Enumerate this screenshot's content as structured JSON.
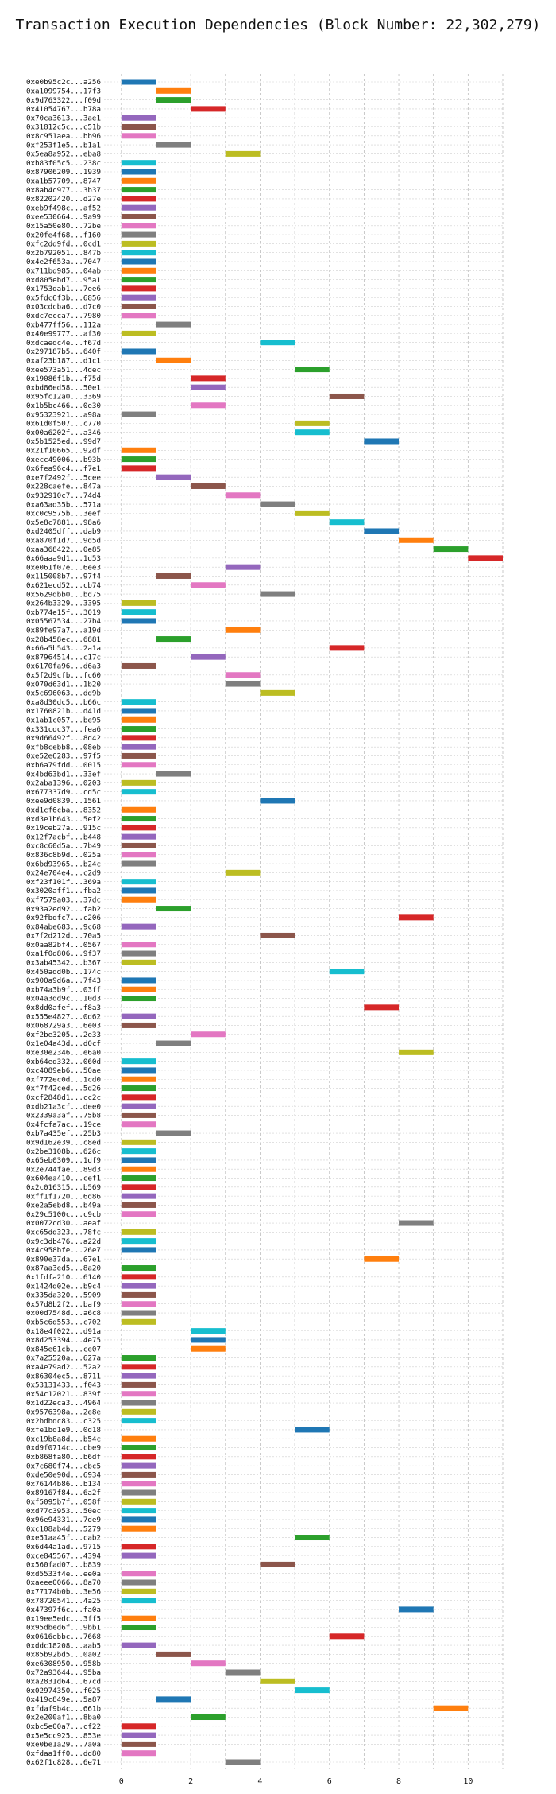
{
  "chart_data": {
    "type": "bar",
    "orientation": "horizontal-gantt",
    "title": "Transaction Execution Dependencies (Block Number: 22,302,279)",
    "xlabel": "",
    "ylabel": "",
    "xlim": [
      -0.5,
      11.0
    ],
    "xticks": [
      0,
      2,
      4,
      6,
      8,
      10
    ],
    "grid": true,
    "bar_width": 1.0,
    "colors": [
      "#1f77b4",
      "#ff7f0e",
      "#2ca02c",
      "#d62728",
      "#9467bd",
      "#8c564b",
      "#e377c2",
      "#7f7f7f",
      "#bcbd22",
      "#17becf"
    ],
    "transactions": [
      [
        "0xe0b95c2c...a256",
        0,
        0
      ],
      [
        "0xa1099754...17f3",
        1,
        1
      ],
      [
        "0x9d763322...f09d",
        1,
        2
      ],
      [
        "0x41054767...b78a",
        2,
        3
      ],
      [
        "0x70ca3613...3ae1",
        0,
        4
      ],
      [
        "0x31812c5c...c51b",
        0,
        5
      ],
      [
        "0x8c951aea...bb96",
        0,
        6
      ],
      [
        "0xf253f1e5...b1a1",
        1,
        7
      ],
      [
        "0x5ea8a952...eba8",
        3,
        8
      ],
      [
        "0xb83f05c5...238c",
        0,
        9
      ],
      [
        "0x87906209...1939",
        0,
        0
      ],
      [
        "0xa1b57709...8747",
        0,
        1
      ],
      [
        "0x8ab4c977...3b37",
        0,
        2
      ],
      [
        "0x82202420...d27e",
        0,
        3
      ],
      [
        "0xeb9f498c...af52",
        0,
        4
      ],
      [
        "0xee530664...9a99",
        0,
        5
      ],
      [
        "0x15a50e80...72be",
        0,
        6
      ],
      [
        "0x20fe4f68...f160",
        0,
        7
      ],
      [
        "0xfc2dd9fd...0cd1",
        0,
        8
      ],
      [
        "0x2b792051...847b",
        0,
        9
      ],
      [
        "0x4e2f653a...7047",
        0,
        0
      ],
      [
        "0x711bd985...04ab",
        0,
        1
      ],
      [
        "0xd805ebd7...95a1",
        0,
        2
      ],
      [
        "0x1753dab1...7ee6",
        0,
        3
      ],
      [
        "0x5fdc6f3b...6856",
        0,
        4
      ],
      [
        "0x03cdcba6...d7c0",
        0,
        5
      ],
      [
        "0xdc7ecca7...7980",
        0,
        6
      ],
      [
        "0xb477ff56...112a",
        1,
        7
      ],
      [
        "0x40e99777...af30",
        0,
        8
      ],
      [
        "0xdcaedc4e...f67d",
        4,
        9
      ],
      [
        "0x297187b5...640f",
        0,
        0
      ],
      [
        "0xaf23b187...d1c1",
        1,
        1
      ],
      [
        "0xee573a51...4dec",
        5,
        2
      ],
      [
        "0x19086f1b...f75d",
        2,
        3
      ],
      [
        "0xbd86ed58...50e1",
        2,
        4
      ],
      [
        "0x95fc12a0...3369",
        6,
        5
      ],
      [
        "0x1b5bc466...0e30",
        2,
        6
      ],
      [
        "0x95323921...a98a",
        0,
        7
      ],
      [
        "0x61d0f507...c770",
        5,
        8
      ],
      [
        "0x00a6202f...a346",
        5,
        9
      ],
      [
        "0x5b1525ed...99d7",
        7,
        0
      ],
      [
        "0x21f10665...92df",
        0,
        1
      ],
      [
        "0xecc49006...b93b",
        0,
        2
      ],
      [
        "0x6fea96c4...f7e1",
        0,
        3
      ],
      [
        "0xe7f2492f...5cee",
        1,
        4
      ],
      [
        "0x228caefe...847a",
        2,
        5
      ],
      [
        "0x932910c7...74d4",
        3,
        6
      ],
      [
        "0xa63ad35b...571a",
        4,
        7
      ],
      [
        "0xc0c9575b...3eef",
        5,
        8
      ],
      [
        "0x5e8c7881...98a6",
        6,
        9
      ],
      [
        "0xd2405dff...dab9",
        7,
        0
      ],
      [
        "0xa870f1d7...9d5d",
        8,
        1
      ],
      [
        "0xaa368422...0e85",
        9,
        2
      ],
      [
        "0x66aaa9d1...1d53",
        10,
        3
      ],
      [
        "0xe061f07e...6ee3",
        3,
        4
      ],
      [
        "0x115008b7...97f4",
        1,
        5
      ],
      [
        "0x621ecd52...cb74",
        2,
        6
      ],
      [
        "0x5629dbb0...bd75",
        4,
        7
      ],
      [
        "0x264b3329...3395",
        0,
        8
      ],
      [
        "0xb774e15f...3019",
        0,
        9
      ],
      [
        "0x05567534...27b4",
        0,
        0
      ],
      [
        "0x89fe97a7...a19d",
        3,
        1
      ],
      [
        "0x28b458ec...6881",
        1,
        2
      ],
      [
        "0x66a5b543...2a1a",
        6,
        3
      ],
      [
        "0x87964514...c17c",
        2,
        4
      ],
      [
        "0x6170fa96...d6a3",
        0,
        5
      ],
      [
        "0x5f2d9cfb...fc60",
        3,
        6
      ],
      [
        "0x070d63d1...1b20",
        3,
        7
      ],
      [
        "0x5c696063...dd9b",
        4,
        8
      ],
      [
        "0xa8d30dc5...b66c",
        0,
        9
      ],
      [
        "0x1760821b...d41d",
        0,
        0
      ],
      [
        "0x1ab1c057...be95",
        0,
        1
      ],
      [
        "0x331cdc37...fea6",
        0,
        2
      ],
      [
        "0x9d66492f...8d42",
        0,
        3
      ],
      [
        "0xfb8cebb8...08eb",
        0,
        4
      ],
      [
        "0xe52e6283...97f5",
        0,
        5
      ],
      [
        "0xb6a79fdd...0015",
        0,
        6
      ],
      [
        "0x4bd63bd1...33ef",
        1,
        7
      ],
      [
        "0x2aba1396...0203",
        0,
        8
      ],
      [
        "0x677337d9...cd5c",
        0,
        9
      ],
      [
        "0xee9d0839...1561",
        4,
        0
      ],
      [
        "0xd1cf6cba...8352",
        0,
        1
      ],
      [
        "0xd3e1b643...5ef2",
        0,
        2
      ],
      [
        "0x19ceb27a...915c",
        0,
        3
      ],
      [
        "0x12f7acbf...b448",
        0,
        4
      ],
      [
        "0xc8c60d5a...7b49",
        0,
        5
      ],
      [
        "0x836c8b9d...025a",
        0,
        6
      ],
      [
        "0x6bd93965...b24c",
        0,
        7
      ],
      [
        "0x24e704e4...c2d9",
        3,
        8
      ],
      [
        "0xf23f101f...369a",
        0,
        9
      ],
      [
        "0x3020aff1...fba2",
        0,
        0
      ],
      [
        "0xf7579a03...37dc",
        0,
        1
      ],
      [
        "0x93a2ed92...fab2",
        1,
        2
      ],
      [
        "0x92fbdfc7...c206",
        8,
        3
      ],
      [
        "0x84abe683...9c68",
        0,
        4
      ],
      [
        "0x7f2d212d...70a5",
        4,
        5
      ],
      [
        "0x0aa82bf4...0567",
        0,
        6
      ],
      [
        "0xa1f0d806...9f37",
        0,
        7
      ],
      [
        "0x3ab45342...b367",
        0,
        8
      ],
      [
        "0x450add0b...174c",
        6,
        9
      ],
      [
        "0x900a9d6a...7f43",
        0,
        0
      ],
      [
        "0xb74a3b9f...03ff",
        0,
        1
      ],
      [
        "0x04a3dd9c...10d3",
        0,
        2
      ],
      [
        "0x8dd0afef...f8a3",
        7,
        3
      ],
      [
        "0x555e4827...0d62",
        0,
        4
      ],
      [
        "0x068729a3...6e03",
        0,
        5
      ],
      [
        "0xf2be3205...2e33",
        2,
        6
      ],
      [
        "0x1e04a43d...d0cf",
        1,
        7
      ],
      [
        "0xe30e2346...e6a0",
        8,
        8
      ],
      [
        "0xb64ed332...060d",
        0,
        9
      ],
      [
        "0xc4089eb6...50ae",
        0,
        0
      ],
      [
        "0xf772ec0d...1cd0",
        0,
        1
      ],
      [
        "0xf7f42ced...5d26",
        0,
        2
      ],
      [
        "0xcf2848d1...cc2c",
        0,
        3
      ],
      [
        "0xdb21a3cf...dee0",
        0,
        4
      ],
      [
        "0x2339a3af...75b8",
        0,
        5
      ],
      [
        "0x4fcfa7ac...19ce",
        0,
        6
      ],
      [
        "0xb7a435ef...25b3",
        1,
        7
      ],
      [
        "0x9d162e39...c8ed",
        0,
        8
      ],
      [
        "0x2be3108b...626c",
        0,
        9
      ],
      [
        "0x65eb0309...1df9",
        0,
        0
      ],
      [
        "0x2e744fae...89d3",
        0,
        1
      ],
      [
        "0x604ea410...cef1",
        0,
        2
      ],
      [
        "0x2c016315...b569",
        0,
        3
      ],
      [
        "0xff1f1720...6d86",
        0,
        4
      ],
      [
        "0xe2a5ebd8...b49a",
        0,
        5
      ],
      [
        "0x29c5100c...c9cb",
        0,
        6
      ],
      [
        "0x0072cd30...aeaf",
        8,
        7
      ],
      [
        "0xc65dd323...78fc",
        0,
        8
      ],
      [
        "0x9c3db476...a22d",
        0,
        9
      ],
      [
        "0x4c958bfe...26e7",
        0,
        0
      ],
      [
        "0x890e37da...67e1",
        7,
        1
      ],
      [
        "0x87aa3ed5...8a20",
        0,
        2
      ],
      [
        "0x1fdfa210...6140",
        0,
        3
      ],
      [
        "0x1424d02e...b9c4",
        0,
        4
      ],
      [
        "0x335da320...5909",
        0,
        5
      ],
      [
        "0x57d8b2f2...baf9",
        0,
        6
      ],
      [
        "0x00d7548d...a6c8",
        0,
        7
      ],
      [
        "0xb5c6d553...c702",
        0,
        8
      ],
      [
        "0x18e4f022...d91a",
        2,
        9
      ],
      [
        "0x8d253394...4e75",
        2,
        0
      ],
      [
        "0x845e61cb...ce07",
        2,
        1
      ],
      [
        "0x7a25520a...627a",
        0,
        2
      ],
      [
        "0xa4e79ad2...52a2",
        0,
        3
      ],
      [
        "0x86304ec5...8711",
        0,
        4
      ],
      [
        "0x53131433...f043",
        0,
        5
      ],
      [
        "0x54c12021...839f",
        0,
        6
      ],
      [
        "0x1d22eca3...4964",
        0,
        7
      ],
      [
        "0x9576398a...2e8e",
        0,
        8
      ],
      [
        "0x2bdbdc83...c325",
        0,
        9
      ],
      [
        "0xfe1bd1e9...0d18",
        5,
        0
      ],
      [
        "0xc19b8a8d...b54c",
        0,
        1
      ],
      [
        "0xd9f0714c...cbe9",
        0,
        2
      ],
      [
        "0xb868fa80...b6df",
        0,
        3
      ],
      [
        "0x7c680f74...cbc5",
        0,
        4
      ],
      [
        "0xde50e90d...6934",
        0,
        5
      ],
      [
        "0x76144b86...b134",
        0,
        6
      ],
      [
        "0x89167f84...6a2f",
        0,
        7
      ],
      [
        "0xf5095b7f...058f",
        0,
        8
      ],
      [
        "0xd77c3953...50ec",
        0,
        9
      ],
      [
        "0x96e94331...7de9",
        0,
        0
      ],
      [
        "0xc108ab4d...5279",
        0,
        1
      ],
      [
        "0xe51aa45f...cab2",
        5,
        2
      ],
      [
        "0x6d44a1ad...9715",
        0,
        3
      ],
      [
        "0xce845567...4394",
        0,
        4
      ],
      [
        "0x560fad07...b839",
        4,
        5
      ],
      [
        "0xd5533f4e...ee0a",
        0,
        6
      ],
      [
        "0xaeee0066...8a70",
        0,
        7
      ],
      [
        "0x77174b0b...3e56",
        0,
        8
      ],
      [
        "0x78720541...4a25",
        0,
        9
      ],
      [
        "0x47397f6c...fa0a",
        8,
        0
      ],
      [
        "0x19ee5edc...3ff5",
        0,
        1
      ],
      [
        "0x95dbed6f...9bb1",
        0,
        2
      ],
      [
        "0x0616ebbc...7668",
        6,
        3
      ],
      [
        "0xddc18208...aab5",
        0,
        4
      ],
      [
        "0x85b92bd5...0a02",
        1,
        5
      ],
      [
        "0xe6308950...958b",
        2,
        6
      ],
      [
        "0x72a93644...95ba",
        3,
        7
      ],
      [
        "0xa2831d64...67cd",
        4,
        8
      ],
      [
        "0x02974350...f025",
        5,
        9
      ],
      [
        "0x419c849e...5a87",
        1,
        0
      ],
      [
        "0xfdaf9b4c...661b",
        9,
        1
      ],
      [
        "0x2e200af1...8ba0",
        2,
        2
      ],
      [
        "0xbc5e00a7...cf22",
        0,
        3
      ],
      [
        "0x5e5cc925...853e",
        0,
        4
      ],
      [
        "0xe0be1a29...7a0a",
        0,
        5
      ],
      [
        "0xfdaa1ff0...dd80",
        0,
        6
      ],
      [
        "0x62f1c828...6e71",
        3,
        7
      ]
    ]
  }
}
